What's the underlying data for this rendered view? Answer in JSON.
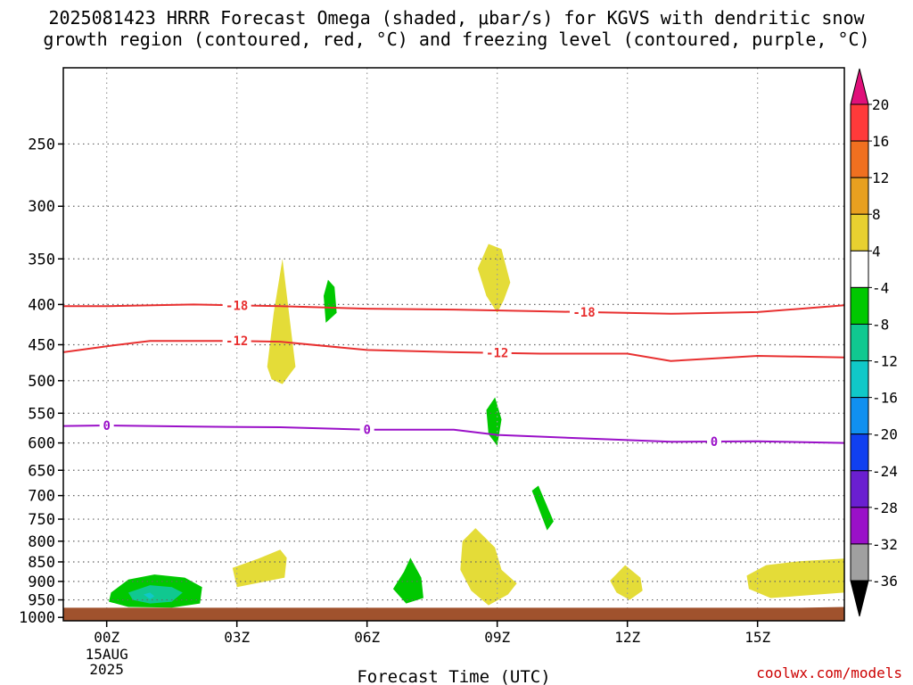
{
  "title_line1": "2025081423 HRRR Forecast Omega (shaded, μbar/s) for KGVS with dendritic snow",
  "title_line2": "growth region (contoured, red, °C) and freezing level (contoured, purple, °C)",
  "credit": "coolwx.com/models",
  "chart_data": {
    "type": "heatmap",
    "xlabel": "Forecast Time (UTC)",
    "date_label": [
      "15AUG",
      "2025"
    ],
    "x_hours": [
      0,
      3,
      6,
      9,
      12,
      15
    ],
    "x_tick_labels": [
      "00Z",
      "03Z",
      "06Z",
      "09Z",
      "12Z",
      "15Z"
    ],
    "xlim_hours": [
      -1,
      17
    ],
    "y_levels": [
      250,
      300,
      350,
      400,
      450,
      500,
      550,
      600,
      650,
      700,
      750,
      800,
      850,
      900,
      950,
      1000
    ],
    "ylim_hPa": [
      200,
      1010
    ],
    "y_scale": "log",
    "grid": true,
    "surface_color": "#a0522d",
    "colorbar": {
      "labels": [
        "20",
        "16",
        "12",
        "8",
        "4",
        "-4",
        "-8",
        "-12",
        "-16",
        "-20",
        "-24",
        "-28",
        "-32",
        "-36"
      ],
      "colors": [
        "#ff3a3a",
        "#f07020",
        "#e8a020",
        "#e8d030",
        "#ffffff",
        "#00c800",
        "#10c890",
        "#10c8c8",
        "#1090f0",
        "#1040f0",
        "#6a1fd0",
        "#9a10c8",
        "#a0a0a0"
      ],
      "top_arrow_color": "#e0107a",
      "bottom_arrow_color": "#000000"
    },
    "omega_regions": [
      {
        "band": "4 to 8",
        "color": "#e4dc38",
        "points": [
          [
            3.7,
            480
          ],
          [
            3.85,
            410
          ],
          [
            4.05,
            350
          ],
          [
            4.2,
            410
          ],
          [
            4.35,
            480
          ],
          [
            4.05,
            505
          ],
          [
            3.8,
            498
          ]
        ]
      },
      {
        "band": "4 to 8",
        "color": "#e4dc38",
        "points": [
          [
            8.55,
            360
          ],
          [
            8.8,
            335
          ],
          [
            9.1,
            340
          ],
          [
            9.3,
            375
          ],
          [
            9.15,
            395
          ],
          [
            9.0,
            410
          ],
          [
            8.75,
            390
          ]
        ]
      },
      {
        "band": "4 to 8",
        "color": "#e4dc38",
        "points": [
          [
            2.9,
            865
          ],
          [
            3.5,
            842
          ],
          [
            4.0,
            820
          ],
          [
            4.15,
            840
          ],
          [
            4.1,
            890
          ],
          [
            3.0,
            915
          ]
        ]
      },
      {
        "band": "4 to 8",
        "color": "#e4dc38",
        "points": [
          [
            8.2,
            800
          ],
          [
            8.5,
            770
          ],
          [
            8.95,
            815
          ],
          [
            9.1,
            870
          ],
          [
            9.45,
            905
          ],
          [
            9.25,
            935
          ],
          [
            8.8,
            965
          ],
          [
            8.4,
            925
          ],
          [
            8.15,
            870
          ]
        ]
      },
      {
        "band": "4 to 8",
        "color": "#e4dc38",
        "points": [
          [
            11.6,
            898
          ],
          [
            11.95,
            858
          ],
          [
            12.3,
            890
          ],
          [
            12.35,
            925
          ],
          [
            12.05,
            950
          ],
          [
            11.75,
            930
          ]
        ]
      },
      {
        "band": "4 to 8",
        "color": "#e4dc38",
        "points": [
          [
            14.75,
            885
          ],
          [
            15.2,
            858
          ],
          [
            16.0,
            848
          ],
          [
            17.0,
            842
          ],
          [
            17.0,
            930
          ],
          [
            15.3,
            945
          ],
          [
            14.8,
            920
          ]
        ]
      },
      {
        "band": "-4 to -8",
        "color": "#00c800",
        "points": [
          [
            5.0,
            390
          ],
          [
            5.1,
            372
          ],
          [
            5.25,
            380
          ],
          [
            5.3,
            410
          ],
          [
            5.05,
            422
          ]
        ]
      },
      {
        "band": "-4 to -8",
        "color": "#00c800",
        "points": [
          [
            8.75,
            545
          ],
          [
            8.95,
            525
          ],
          [
            9.1,
            560
          ],
          [
            9.0,
            605
          ],
          [
            8.8,
            585
          ]
        ]
      },
      {
        "band": "-4 to -8",
        "color": "#00c800",
        "points": [
          [
            9.8,
            690
          ],
          [
            9.95,
            680
          ],
          [
            10.3,
            755
          ],
          [
            10.15,
            775
          ]
        ]
      },
      {
        "band": "-4 to -8",
        "color": "#00c800",
        "points": [
          [
            6.6,
            920
          ],
          [
            6.85,
            875
          ],
          [
            7.0,
            840
          ],
          [
            7.25,
            890
          ],
          [
            7.3,
            945
          ],
          [
            6.9,
            960
          ]
        ]
      },
      {
        "band": "-4 to -8",
        "color": "#00c800",
        "points": [
          [
            0.1,
            930
          ],
          [
            0.5,
            895
          ],
          [
            1.1,
            882
          ],
          [
            1.8,
            890
          ],
          [
            2.2,
            915
          ],
          [
            2.15,
            960
          ],
          [
            1.5,
            972
          ],
          [
            0.5,
            970
          ],
          [
            0.05,
            955
          ]
        ]
      },
      {
        "band": "-8 to -12",
        "color": "#10c890",
        "points": [
          [
            0.5,
            930
          ],
          [
            1.0,
            910
          ],
          [
            1.5,
            915
          ],
          [
            1.75,
            930
          ],
          [
            1.5,
            955
          ],
          [
            1.0,
            960
          ],
          [
            0.6,
            950
          ]
        ]
      },
      {
        "band": "-12 to -16",
        "color": "#10c8c8",
        "points": [
          [
            0.85,
            935
          ],
          [
            1.0,
            930
          ],
          [
            1.1,
            940
          ],
          [
            1.0,
            948
          ]
        ]
      }
    ],
    "contours": [
      {
        "value": "-18",
        "color": "#e83030",
        "labels_at_hours": [
          3.0,
          11.0
        ],
        "points": [
          [
            -1,
            402
          ],
          [
            0,
            402
          ],
          [
            2,
            400
          ],
          [
            4,
            402
          ],
          [
            6,
            405
          ],
          [
            8,
            406
          ],
          [
            10,
            408
          ],
          [
            13,
            411
          ],
          [
            15,
            409
          ],
          [
            17,
            401
          ]
        ]
      },
      {
        "value": "-12",
        "color": "#e83030",
        "labels_at_hours": [
          3.0,
          9.0
        ],
        "points": [
          [
            -1,
            460
          ],
          [
            0,
            452
          ],
          [
            1,
            445
          ],
          [
            3,
            445
          ],
          [
            4,
            446
          ],
          [
            6,
            457
          ],
          [
            8,
            460
          ],
          [
            10,
            462
          ],
          [
            12,
            462
          ],
          [
            13,
            472
          ],
          [
            15,
            465
          ],
          [
            17,
            467
          ]
        ]
      },
      {
        "value": "0",
        "color": "#9a10c8",
        "labels_at_hours": [
          0.0,
          6.0,
          14.0
        ],
        "points": [
          [
            -1,
            571
          ],
          [
            0,
            570
          ],
          [
            2,
            572
          ],
          [
            4,
            573
          ],
          [
            6,
            577
          ],
          [
            8,
            577
          ],
          [
            9,
            586
          ],
          [
            11,
            592
          ],
          [
            13,
            598
          ],
          [
            15,
            597
          ],
          [
            17,
            600
          ]
        ]
      }
    ]
  }
}
